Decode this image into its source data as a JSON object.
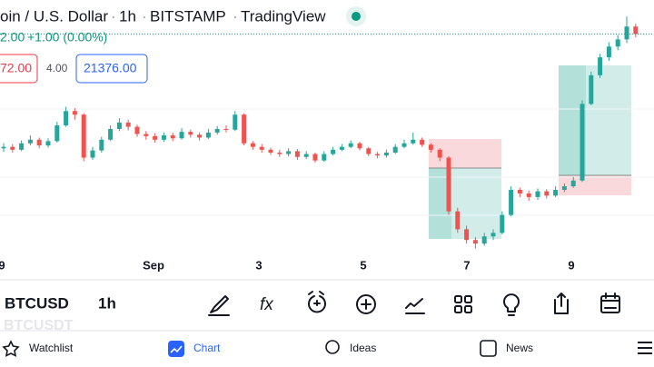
{
  "header": {
    "title": "oin / U.S. Dollar",
    "interval": "1h",
    "exchange": "BITSTAMP",
    "brand": "TradingView"
  },
  "quote": {
    "last": "2.00",
    "change": "+1.00 (0.00%)"
  },
  "order": {
    "sell": "72.00",
    "spread": "4.00",
    "buy": "21376.00"
  },
  "chart_data": {
    "type": "candlestick",
    "up_color": "#26a69a",
    "down_color": "#ef5350",
    "ylim": [
      18300,
      21850
    ],
    "x_labels": [
      "9",
      "Sep",
      "3",
      "5",
      "7",
      "9"
    ],
    "open": [
      19780,
      19800,
      19760,
      19850,
      19900,
      19820,
      19880,
      20100,
      20300,
      20250,
      19650,
      19750,
      19900,
      20050,
      20140,
      20080,
      19980,
      19950,
      19900,
      19960,
      19920,
      20010,
      19970,
      19930,
      20000,
      20050,
      20040,
      20250,
      19850,
      19800,
      19760,
      19720,
      19700,
      19740,
      19660,
      19700,
      19610,
      19700,
      19760,
      19800,
      19850,
      19780,
      19700,
      19680,
      19720,
      19800,
      19850,
      19900,
      19830,
      19760,
      19650,
      18900,
      18650,
      18500,
      18450,
      18550,
      18600,
      18850,
      19200,
      19150,
      19100,
      19180,
      19120,
      19200,
      19250,
      19330,
      20400,
      20800,
      21050,
      21200,
      21300,
      21480
    ],
    "high": [
      19850,
      19840,
      19890,
      19960,
      19930,
      19920,
      20150,
      20360,
      20340,
      20270,
      19800,
      19940,
      20100,
      20200,
      20180,
      20110,
      20020,
      19990,
      20000,
      20000,
      20060,
      20040,
      20000,
      20050,
      20090,
      20100,
      20300,
      20270,
      19880,
      19840,
      19790,
      19760,
      19780,
      19770,
      19740,
      19720,
      19740,
      19800,
      19840,
      19890,
      19870,
      19800,
      19730,
      19760,
      19840,
      19900,
      20000,
      19930,
      19850,
      19780,
      19670,
      18950,
      18700,
      18540,
      18600,
      18650,
      18900,
      19250,
      19230,
      19190,
      19220,
      19210,
      19250,
      19290,
      19380,
      20450,
      20850,
      21100,
      21260,
      21360,
      21620,
      21520
    ],
    "low": [
      19730,
      19720,
      19740,
      19820,
      19780,
      19790,
      19860,
      20080,
      20180,
      19600,
      19620,
      19720,
      19880,
      20020,
      20030,
      19940,
      19900,
      19860,
      19870,
      19880,
      19900,
      19930,
      19890,
      19910,
      19970,
      20000,
      20020,
      19820,
      19760,
      19720,
      19690,
      19660,
      19670,
      19620,
      19630,
      19580,
      19590,
      19680,
      19740,
      19780,
      19750,
      19670,
      19640,
      19650,
      19700,
      19780,
      19830,
      19800,
      19720,
      19600,
      18850,
      18600,
      18450,
      18380,
      18420,
      18500,
      18580,
      18830,
      19100,
      19050,
      19060,
      19080,
      19100,
      19170,
      19230,
      19310,
      20380,
      20760,
      21000,
      21150,
      21250,
      21330
    ],
    "close": [
      19800,
      19760,
      19850,
      19900,
      19820,
      19880,
      20100,
      20300,
      20250,
      19650,
      19750,
      19900,
      20050,
      20140,
      20080,
      19980,
      19950,
      19900,
      19960,
      19920,
      20010,
      19970,
      19930,
      20000,
      20050,
      20040,
      20250,
      19850,
      19800,
      19760,
      19720,
      19700,
      19740,
      19660,
      19700,
      19610,
      19700,
      19760,
      19800,
      19850,
      19780,
      19700,
      19680,
      19720,
      19800,
      19850,
      19900,
      19830,
      19760,
      19650,
      18900,
      18650,
      18500,
      18450,
      18550,
      18600,
      18850,
      19200,
      19150,
      19100,
      19180,
      19120,
      19200,
      19250,
      19330,
      20400,
      20800,
      21050,
      21200,
      21300,
      21480,
      21376
    ]
  },
  "symbol_bar": {
    "symbol": "BTCUSD",
    "interval": "1h",
    "ghost": "BTCUSDT"
  },
  "nav": {
    "watchlist": "Watchlist",
    "chart": "Chart",
    "ideas": "Ideas",
    "news": "News"
  }
}
